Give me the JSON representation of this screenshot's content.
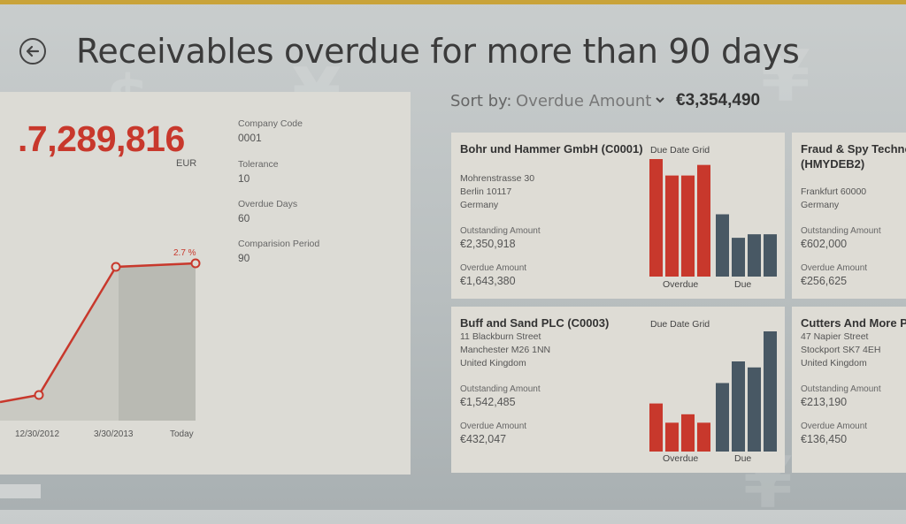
{
  "header": {
    "title": "Receivables overdue for more than 90 days",
    "back_label": "back"
  },
  "sort": {
    "label": "Sort by:",
    "value": "Overdue Amount",
    "total": "€3,354,490"
  },
  "kpi": {
    "value": ".7,289,816",
    "currency": "EUR",
    "fields": [
      {
        "label": "Company Code",
        "value": "0001"
      },
      {
        "label": "Tolerance",
        "value": "10"
      },
      {
        "label": "Overdue Days",
        "value": "60"
      },
      {
        "label": "Comparision Period",
        "value": "90"
      }
    ],
    "trend": {
      "annotation": "2.7 %",
      "x_labels": [
        "12/30/2012",
        "3/30/2013",
        "Today"
      ]
    }
  },
  "cards": [
    {
      "name": "Bohr und Hammer GmbH (C0001)",
      "address": [
        "Mohrenstrasse 30",
        "Berlin 10117",
        "Germany"
      ],
      "outstanding_label": "Outstanding Amount",
      "outstanding": "€2,350,918",
      "overdue_label": "Overdue Amount",
      "overdue": "€1,643,380",
      "grid_title": "Due Date Grid",
      "overdue_axis": "Overdue",
      "due_axis": "Due",
      "bars": {
        "overdue": [
          1.0,
          0.86,
          0.86,
          0.95
        ],
        "due": [
          0.53,
          0.33,
          0.36,
          0.36
        ]
      }
    },
    {
      "name": "Fraud & Spy Techno (HMYDEB2)",
      "address": [
        "Frankfurt 60000",
        "Germany"
      ],
      "outstanding_label": "Outstanding Amount",
      "outstanding": "€602,000",
      "overdue_label": "Overdue Amount",
      "overdue": "€256,625"
    },
    {
      "name": "Buff and Sand PLC (C0003)",
      "address": [
        "11 Blackburn Street",
        "Manchester M26 1NN",
        "United Kingdom"
      ],
      "outstanding_label": "Outstanding Amount",
      "outstanding": "€1,542,485",
      "overdue_label": "Overdue Amount",
      "overdue": "€432,047",
      "grid_title": "Due Date Grid",
      "overdue_axis": "Overdue",
      "due_axis": "Due",
      "bars": {
        "overdue": [
          0.4,
          0.24,
          0.31,
          0.24
        ],
        "due": [
          0.57,
          0.75,
          0.7,
          1.0
        ]
      }
    },
    {
      "name": "Cutters And More P",
      "address": [
        "47 Napier Street",
        "Stockport SK7 4EH",
        "United Kingdom"
      ],
      "outstanding_label": "Outstanding Amount",
      "outstanding": "€213,190",
      "overdue_label": "Overdue Amount",
      "overdue": "€136,450"
    }
  ],
  "colors": {
    "accent_red": "#c8382c",
    "bar_blue": "#485864",
    "top_bar": "#c9a33a"
  }
}
